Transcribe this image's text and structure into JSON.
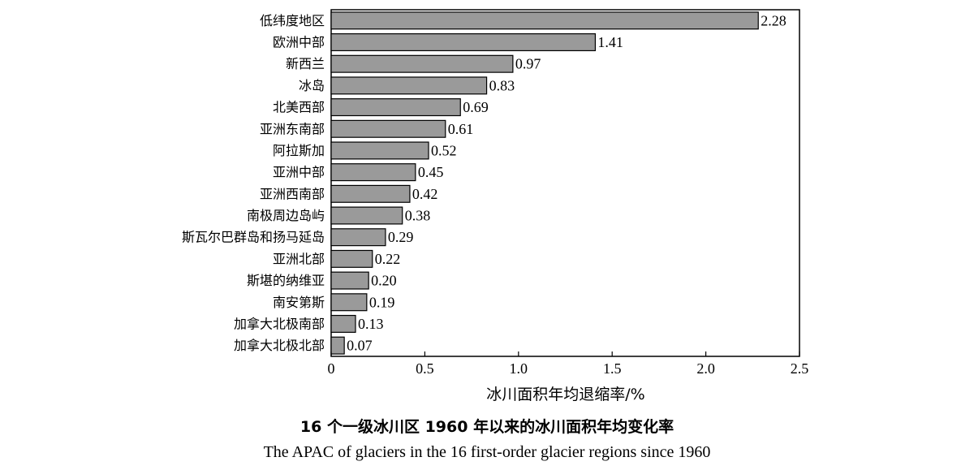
{
  "caption": {
    "cn": "16 个一级冰川区 1960 年以来的冰川面积年均变化率",
    "en": "The APAC of glaciers in the 16 first-order glacier regions since 1960"
  },
  "chart_data": {
    "type": "bar",
    "orientation": "horizontal",
    "categories": [
      "低纬度地区",
      "欧洲中部",
      "新西兰",
      "冰岛",
      "北美西部",
      "亚洲东南部",
      "阿拉斯加",
      "亚洲中部",
      "亚洲西南部",
      "南极周边岛屿",
      "斯瓦尔巴群岛和扬马延岛",
      "亚洲北部",
      "斯堪的纳维亚",
      "南安第斯",
      "加拿大北极南部",
      "加拿大北极北部"
    ],
    "values": [
      2.28,
      1.41,
      0.97,
      0.83,
      0.69,
      0.61,
      0.52,
      0.45,
      0.42,
      0.38,
      0.29,
      0.22,
      0.2,
      0.19,
      0.13,
      0.07
    ],
    "value_labels": [
      "2.28",
      "1.41",
      "0.97",
      "0.83",
      "0.69",
      "0.61",
      "0.52",
      "0.45",
      "0.42",
      "0.38",
      "0.29",
      "0.22",
      "0.20",
      "0.19",
      "0.13",
      "0.07"
    ],
    "xlabel": "冰川面积年均退缩率/%",
    "ylabel": "",
    "xlim": [
      0,
      2.5
    ],
    "xticks": [
      0,
      0.5,
      1.0,
      1.5,
      2.0,
      2.5
    ],
    "xtick_labels": [
      "0",
      "0.5",
      "1.0",
      "1.5",
      "2.0",
      "2.5"
    ],
    "grid": false,
    "legend": "none",
    "colors": {
      "bar_fill": "#9a9a9a",
      "bar_stroke": "#000000",
      "axis": "#000000"
    }
  }
}
